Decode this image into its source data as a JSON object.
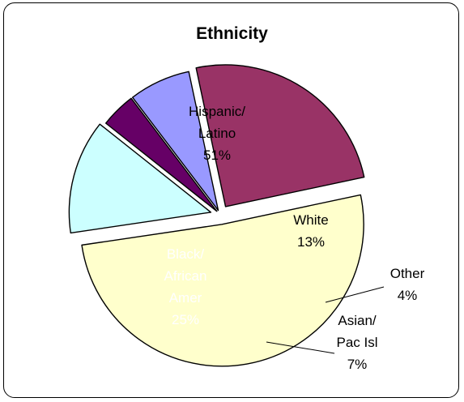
{
  "chart_data": {
    "type": "pie",
    "title": "Ethnicity",
    "slices": [
      {
        "key": "hispanic",
        "label_lines": [
          "Hispanic/",
          "Latino"
        ],
        "value": 51,
        "value_label": "51%",
        "color": "#FFFFCC",
        "label_color": "#000000"
      },
      {
        "key": "white",
        "label_lines": [
          "White"
        ],
        "value": 13,
        "value_label": "13%",
        "color": "#CCFFFF",
        "label_color": "#000000"
      },
      {
        "key": "other",
        "label_lines": [
          "Other"
        ],
        "value": 4,
        "value_label": "4%",
        "color": "#660066",
        "label_color": "#000000"
      },
      {
        "key": "asian",
        "label_lines": [
          "Asian/",
          "Pac Isl"
        ],
        "value": 7,
        "value_label": "7%",
        "color": "#9999FF",
        "label_color": "#000000"
      },
      {
        "key": "black",
        "label_lines": [
          "Black/",
          "African",
          "Amer"
        ],
        "value": 25,
        "value_label": "25%",
        "color": "#993366",
        "label_color": "#FFFFFF"
      }
    ],
    "legend": "none"
  }
}
